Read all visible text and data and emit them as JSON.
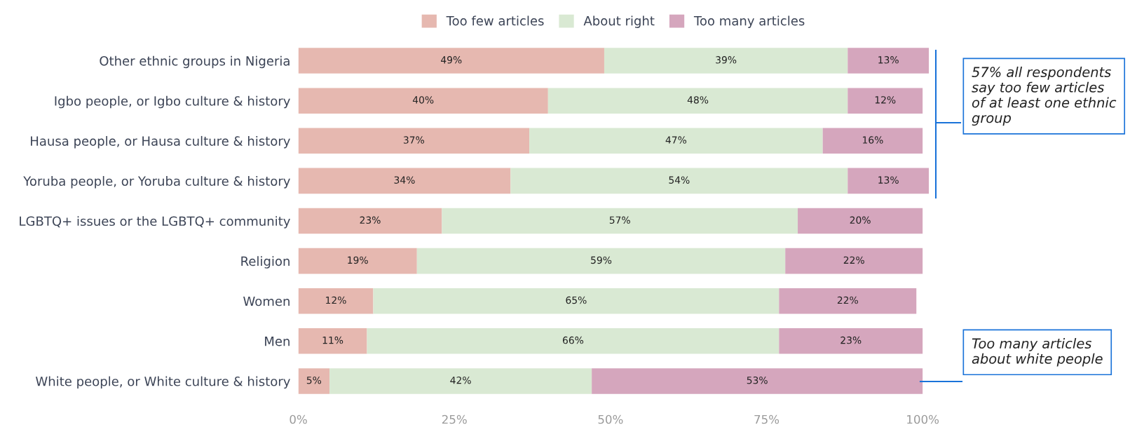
{
  "chart_data": {
    "type": "bar",
    "orientation": "horizontal",
    "stacked": true,
    "legend": "top",
    "grid": false,
    "categories": [
      "Other ethnic groups in Nigeria",
      "Igbo people, or Igbo culture & history",
      "Hausa people, or Hausa culture & history",
      "Yoruba people, or Yoruba culture & history",
      "LGBTQ+ issues or the LGBTQ+ community",
      "Religion",
      "Women",
      "Men",
      "White people, or White culture & history"
    ],
    "series": [
      {
        "name": "Too few articles",
        "color": "#e6b8b0",
        "values": [
          49,
          40,
          37,
          34,
          23,
          19,
          12,
          11,
          5
        ],
        "value_labels": [
          "49%",
          "40%",
          "37%",
          "34%",
          "23%",
          "19%",
          "12%",
          "11%",
          "5%"
        ]
      },
      {
        "name": "About right",
        "color": "#d9e9d3",
        "values": [
          39,
          48,
          47,
          54,
          57,
          59,
          65,
          66,
          42
        ],
        "value_labels": [
          "39%",
          "48%",
          "47%",
          "54%",
          "57%",
          "59%",
          "65%",
          "66%",
          "42%"
        ]
      },
      {
        "name": "Too many articles",
        "color": "#d5a6bd",
        "values": [
          13,
          12,
          16,
          13,
          20,
          22,
          22,
          23,
          53
        ],
        "value_labels": [
          "13%",
          "12%",
          "16%",
          "13%",
          "20%",
          "22%",
          "22%",
          "23%",
          "53%"
        ]
      }
    ],
    "xlim": [
      0,
      101
    ],
    "xticks": [
      {
        "value": 0,
        "label": "0%"
      },
      {
        "value": 25,
        "label": "25%"
      },
      {
        "value": 50,
        "label": "50%"
      },
      {
        "value": 75,
        "label": "75%"
      },
      {
        "value": 100,
        "label": "100%"
      }
    ],
    "annotations": [
      "57% all respondents say too few articles of at least one ethnic group",
      "Too many articles about white people"
    ]
  }
}
